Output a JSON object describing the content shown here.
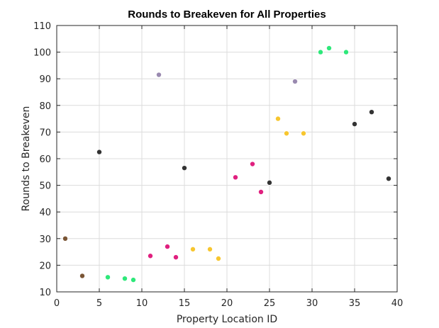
{
  "chart_data": {
    "type": "scatter",
    "title": "Rounds to Breakeven for All Properties",
    "xlabel": "Property Location ID",
    "ylabel": "Rounds to Breakeven",
    "xlim": [
      0,
      40
    ],
    "ylim": [
      10,
      110
    ],
    "xticks": [
      "0",
      "5",
      "10",
      "15",
      "20",
      "25",
      "30",
      "35",
      "40"
    ],
    "yticks": [
      "10",
      "20",
      "30",
      "40",
      "50",
      "60",
      "70",
      "80",
      "90",
      "100",
      "110"
    ],
    "grid": true,
    "legend": "none",
    "points": [
      {
        "x": 1,
        "y": 30,
        "color": "#7a5535"
      },
      {
        "x": 3,
        "y": 16,
        "color": "#7a5535"
      },
      {
        "x": 5,
        "y": 62.5,
        "color": "#333333"
      },
      {
        "x": 6,
        "y": 15.5,
        "color": "#2ee87a"
      },
      {
        "x": 8,
        "y": 15,
        "color": "#2ee87a"
      },
      {
        "x": 9,
        "y": 14.5,
        "color": "#2ee87a"
      },
      {
        "x": 11,
        "y": 23.5,
        "color": "#e0207f"
      },
      {
        "x": 12,
        "y": 91.5,
        "color": "#9a8ab0"
      },
      {
        "x": 13,
        "y": 27,
        "color": "#e0207f"
      },
      {
        "x": 14,
        "y": 23,
        "color": "#e0207f"
      },
      {
        "x": 15,
        "y": 56.5,
        "color": "#333333"
      },
      {
        "x": 16,
        "y": 26,
        "color": "#f7c62f"
      },
      {
        "x": 18,
        "y": 26,
        "color": "#f7c62f"
      },
      {
        "x": 19,
        "y": 22.5,
        "color": "#f7c62f"
      },
      {
        "x": 21,
        "y": 53,
        "color": "#e0207f"
      },
      {
        "x": 23,
        "y": 58,
        "color": "#e0207f"
      },
      {
        "x": 24,
        "y": 47.5,
        "color": "#e0207f"
      },
      {
        "x": 25,
        "y": 51,
        "color": "#333333"
      },
      {
        "x": 26,
        "y": 75,
        "color": "#f7c62f"
      },
      {
        "x": 27,
        "y": 69.5,
        "color": "#f7c62f"
      },
      {
        "x": 28,
        "y": 89,
        "color": "#9a8ab0"
      },
      {
        "x": 29,
        "y": 69.5,
        "color": "#f7c62f"
      },
      {
        "x": 31,
        "y": 100,
        "color": "#2ee87a"
      },
      {
        "x": 32,
        "y": 101.5,
        "color": "#2ee87a"
      },
      {
        "x": 34,
        "y": 100,
        "color": "#2ee87a"
      },
      {
        "x": 35,
        "y": 73,
        "color": "#333333"
      },
      {
        "x": 37,
        "y": 77.5,
        "color": "#333333"
      },
      {
        "x": 39,
        "y": 52.5,
        "color": "#333333"
      }
    ]
  }
}
